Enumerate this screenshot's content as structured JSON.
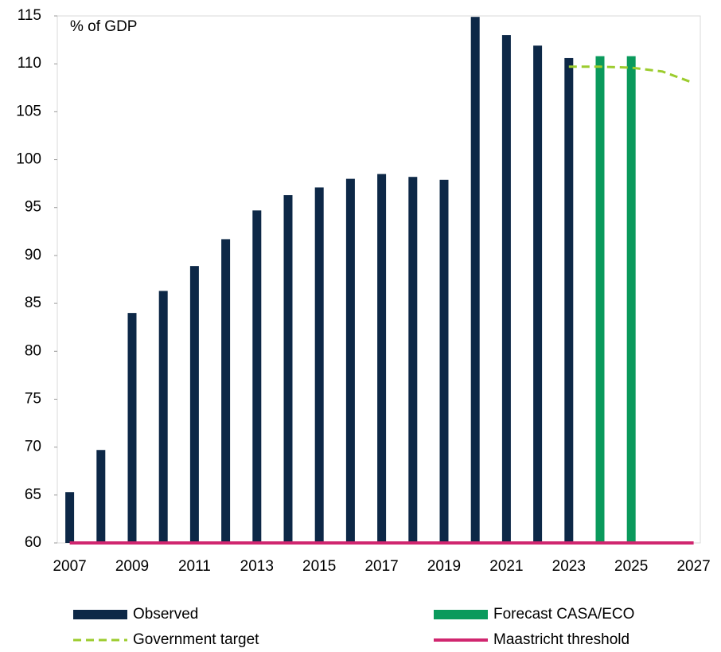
{
  "chart_data": {
    "type": "bar",
    "annotation": "% of GDP",
    "categories": [
      "2007",
      null,
      "2009",
      null,
      "2011",
      null,
      "2013",
      null,
      "2015",
      null,
      "2017",
      null,
      "2019",
      null,
      "2021",
      null,
      "2023",
      null,
      "2025",
      null,
      "2027"
    ],
    "series": [
      {
        "name": "Observed",
        "type": "bar",
        "color": "#0d2847",
        "values": [
          65.3,
          69.7,
          84.0,
          86.3,
          88.9,
          91.7,
          94.7,
          96.3,
          97.1,
          98.0,
          98.5,
          98.2,
          97.9,
          114.9,
          113.0,
          111.9,
          110.6,
          null,
          null,
          null,
          null
        ]
      },
      {
        "name": "Forecast CASA/ECO",
        "type": "bar",
        "color": "#0a9a5c",
        "values": [
          null,
          null,
          null,
          null,
          null,
          null,
          null,
          null,
          null,
          null,
          null,
          null,
          null,
          null,
          null,
          null,
          null,
          110.8,
          110.8,
          null,
          null
        ]
      },
      {
        "name": "Government target",
        "type": "line",
        "dashed": true,
        "color": "#9ccc2e",
        "values": [
          null,
          null,
          null,
          null,
          null,
          null,
          null,
          null,
          null,
          null,
          null,
          null,
          null,
          null,
          null,
          null,
          109.7,
          109.7,
          109.6,
          109.2,
          108.0
        ]
      },
      {
        "name": "Maastricht threshold",
        "type": "line",
        "dashed": false,
        "color": "#d0266f",
        "values": [
          60,
          60,
          60,
          60,
          60,
          60,
          60,
          60,
          60,
          60,
          60,
          60,
          60,
          60,
          60,
          60,
          60,
          60,
          60,
          60,
          60
        ]
      }
    ],
    "ylim": [
      60,
      115
    ],
    "yticks": [
      60,
      65,
      70,
      75,
      80,
      85,
      90,
      95,
      100,
      105,
      110,
      115
    ]
  }
}
